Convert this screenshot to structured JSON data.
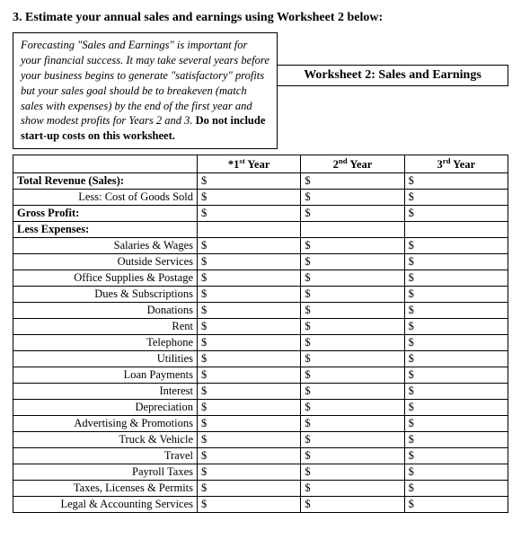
{
  "heading": "3. Estimate your annual sales and earnings using Worksheet 2 below:",
  "note_italic": "Forecasting \"Sales and Earnings\" is important for your financial success.  It may take several years before your business begins to generate \"satisfactory\" profits but your sales goal should be to breakeven (match sales with expenses) by the end of the first year and show modest profits for Years 2 and 3.",
  "note_bold": "Do not include start-up costs on this worksheet.",
  "worksheet_title": "Worksheet 2:  Sales and Earnings",
  "columns": {
    "y1_prefix": "*1",
    "y1_suffix": " Year",
    "y2_prefix": "2",
    "y2_suffix": " Year",
    "y3_prefix": "3",
    "y3_suffix": " Year",
    "sup_st": "st",
    "sup_nd": "nd",
    "sup_rd": "rd"
  },
  "rows": [
    {
      "label": "Total Revenue (Sales):",
      "bold": true,
      "align": "left",
      "dollars": true
    },
    {
      "label": "Less: Cost of Goods Sold",
      "bold": false,
      "align": "right",
      "dollars": true
    },
    {
      "label": "Gross Profit:",
      "bold": true,
      "align": "left",
      "dollars": true
    },
    {
      "label": "Less Expenses:",
      "bold": true,
      "align": "left",
      "dollars": false
    },
    {
      "label": "Salaries & Wages",
      "bold": false,
      "align": "right",
      "dollars": true
    },
    {
      "label": "Outside Services",
      "bold": false,
      "align": "right",
      "dollars": true
    },
    {
      "label": "Office Supplies & Postage",
      "bold": false,
      "align": "right",
      "dollars": true
    },
    {
      "label": "Dues & Subscriptions",
      "bold": false,
      "align": "right",
      "dollars": true
    },
    {
      "label": "Donations",
      "bold": false,
      "align": "right",
      "dollars": true
    },
    {
      "label": "Rent",
      "bold": false,
      "align": "right",
      "dollars": true
    },
    {
      "label": "Telephone",
      "bold": false,
      "align": "right",
      "dollars": true
    },
    {
      "label": "Utilities",
      "bold": false,
      "align": "right",
      "dollars": true
    },
    {
      "label": "Loan Payments",
      "bold": false,
      "align": "right",
      "dollars": true
    },
    {
      "label": "Interest",
      "bold": false,
      "align": "right",
      "dollars": true
    },
    {
      "label": "Depreciation",
      "bold": false,
      "align": "right",
      "dollars": true
    },
    {
      "label": "Advertising & Promotions",
      "bold": false,
      "align": "right",
      "dollars": true
    },
    {
      "label": "Truck & Vehicle",
      "bold": false,
      "align": "right",
      "dollars": true
    },
    {
      "label": "Travel",
      "bold": false,
      "align": "right",
      "dollars": true
    },
    {
      "label": "Payroll Taxes",
      "bold": false,
      "align": "right",
      "dollars": true
    },
    {
      "label": "Taxes, Licenses & Permits",
      "bold": false,
      "align": "right",
      "dollars": true
    },
    {
      "label": "Legal & Accounting Services",
      "bold": false,
      "align": "right",
      "dollars": true
    }
  ],
  "currency": "$"
}
